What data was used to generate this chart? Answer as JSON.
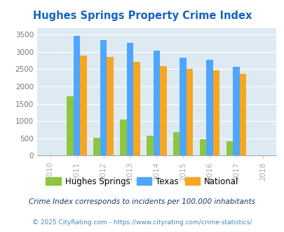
{
  "title": "Hughes Springs Property Crime Index",
  "all_years": [
    2010,
    2011,
    2012,
    2013,
    2014,
    2015,
    2016,
    2017,
    2018
  ],
  "data_years": [
    2011,
    2012,
    2013,
    2014,
    2015,
    2016,
    2017
  ],
  "hughes_springs": [
    1720,
    510,
    1050,
    570,
    670,
    470,
    410
  ],
  "texas": [
    3470,
    3350,
    3260,
    3030,
    2840,
    2770,
    2580
  ],
  "national": [
    2900,
    2860,
    2720,
    2600,
    2500,
    2470,
    2370
  ],
  "hughes_color": "#8dc63f",
  "texas_color": "#4da6ff",
  "national_color": "#f5a623",
  "bg_color": "#deeaf1",
  "title_color": "#1565c0",
  "footnote_color": "#1a3a5c",
  "footnote2_color": "#4488bb",
  "legend_label_hs": "Hughes Springs",
  "legend_label_tx": "Texas",
  "legend_label_nat": "National",
  "footnote1": "Crime Index corresponds to incidents per 100,000 inhabitants",
  "footnote2": "© 2025 CityRating.com - https://www.cityrating.com/crime-statistics/",
  "yticks": [
    0,
    500,
    1000,
    1500,
    2000,
    2500,
    3000,
    3500
  ],
  "bar_width": 0.25
}
